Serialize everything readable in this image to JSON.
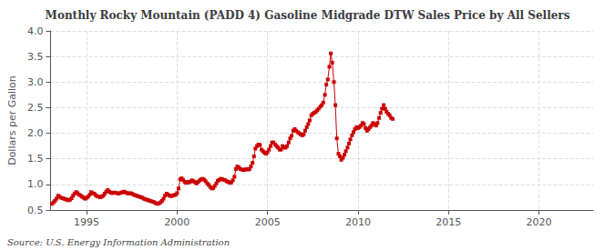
{
  "chart_data": {
    "type": "line",
    "title": "Monthly Rocky Mountain (PADD 4) Gasoline Midgrade DTW Sales Price by All Sellers",
    "ylabel": "Dollars per Gallon",
    "source": "Source: U.S. Energy Information Administration",
    "color": "#cc0000",
    "marker": "square",
    "line_style": "solid",
    "grid": true,
    "xlim": [
      1993.0,
      2023.0
    ],
    "ylim": [
      0.5,
      4.0
    ],
    "xticks": [
      1995,
      2000,
      2005,
      2010,
      2015,
      2020
    ],
    "yticks": [
      0.5,
      {
        "value": 1.0,
        "label": "1.0"
      },
      1.5,
      {
        "value": 2.0,
        "label": "2.0"
      },
      2.5,
      {
        "value": 3.0,
        "label": "3.0"
      },
      3.5,
      {
        "value": 4.0,
        "label": "4.0"
      }
    ],
    "x": [
      1993.08,
      1993.17,
      1993.25,
      1993.33,
      1993.42,
      1993.5,
      1993.58,
      1993.67,
      1993.75,
      1993.83,
      1993.92,
      1994.0,
      1994.08,
      1994.17,
      1994.25,
      1994.33,
      1994.42,
      1994.5,
      1994.58,
      1994.67,
      1994.75,
      1994.83,
      1994.92,
      1995.0,
      1995.08,
      1995.17,
      1995.25,
      1995.33,
      1995.42,
      1995.5,
      1995.58,
      1995.67,
      1995.75,
      1995.83,
      1995.92,
      1996.0,
      1996.08,
      1996.17,
      1996.25,
      1996.33,
      1996.42,
      1996.5,
      1996.58,
      1996.67,
      1996.75,
      1996.83,
      1996.92,
      1997.0,
      1997.08,
      1997.17,
      1997.25,
      1997.33,
      1997.42,
      1997.5,
      1997.58,
      1997.67,
      1997.75,
      1997.83,
      1997.92,
      1998.0,
      1998.08,
      1998.17,
      1998.25,
      1998.33,
      1998.42,
      1998.5,
      1998.58,
      1998.67,
      1998.75,
      1998.83,
      1998.92,
      1999.0,
      1999.08,
      1999.17,
      1999.25,
      1999.33,
      1999.42,
      1999.5,
      1999.58,
      1999.67,
      1999.75,
      1999.83,
      1999.92,
      2000.0,
      2000.08,
      2000.17,
      2000.25,
      2000.33,
      2000.42,
      2000.5,
      2000.58,
      2000.67,
      2000.75,
      2000.83,
      2000.92,
      2001.0,
      2001.08,
      2001.17,
      2001.25,
      2001.33,
      2001.42,
      2001.5,
      2001.58,
      2001.67,
      2001.75,
      2001.83,
      2001.92,
      2002.0,
      2002.08,
      2002.17,
      2002.25,
      2002.33,
      2002.42,
      2002.5,
      2002.58,
      2002.67,
      2002.75,
      2002.83,
      2002.92,
      2003.0,
      2003.08,
      2003.17,
      2003.25,
      2003.33,
      2003.42,
      2003.5,
      2003.58,
      2003.67,
      2003.75,
      2003.83,
      2003.92,
      2004.0,
      2004.08,
      2004.17,
      2004.25,
      2004.33,
      2004.42,
      2004.5,
      2004.58,
      2004.67,
      2004.75,
      2004.83,
      2004.92,
      2005.0,
      2005.08,
      2005.17,
      2005.25,
      2005.33,
      2005.42,
      2005.5,
      2005.58,
      2005.67,
      2005.75,
      2005.83,
      2005.92,
      2006.0,
      2006.08,
      2006.17,
      2006.25,
      2006.33,
      2006.42,
      2006.5,
      2006.58,
      2006.67,
      2006.75,
      2006.83,
      2006.92,
      2007.0,
      2007.08,
      2007.17,
      2007.25,
      2007.33,
      2007.42,
      2007.5,
      2007.58,
      2007.67,
      2007.75,
      2007.83,
      2007.92,
      2008.0,
      2008.08,
      2008.17,
      2008.25,
      2008.33,
      2008.42,
      2008.5,
      2008.58,
      2008.67,
      2008.75,
      2008.83,
      2008.92,
      2009.0,
      2009.08,
      2009.17,
      2009.25,
      2009.33,
      2009.42,
      2009.5,
      2009.58,
      2009.67,
      2009.75,
      2009.83,
      2009.92,
      2010.0,
      2010.08,
      2010.17,
      2010.25,
      2010.33,
      2010.42,
      2010.5,
      2010.58,
      2010.67,
      2010.75,
      2010.83,
      2010.92,
      2011.0,
      2011.08,
      2011.17,
      2011.25,
      2011.33,
      2011.42,
      2011.5,
      2011.58,
      2011.67,
      2011.75,
      2011.83,
      2011.92
    ],
    "values": [
      0.62,
      0.65,
      0.68,
      0.72,
      0.78,
      0.76,
      0.74,
      0.73,
      0.72,
      0.71,
      0.7,
      0.69,
      0.7,
      0.73,
      0.78,
      0.82,
      0.85,
      0.83,
      0.8,
      0.78,
      0.76,
      0.74,
      0.72,
      0.74,
      0.76,
      0.8,
      0.85,
      0.83,
      0.82,
      0.79,
      0.77,
      0.76,
      0.75,
      0.76,
      0.78,
      0.82,
      0.86,
      0.89,
      0.86,
      0.84,
      0.83,
      0.84,
      0.84,
      0.83,
      0.82,
      0.83,
      0.84,
      0.85,
      0.86,
      0.84,
      0.83,
      0.82,
      0.83,
      0.82,
      0.8,
      0.79,
      0.78,
      0.77,
      0.76,
      0.75,
      0.74,
      0.72,
      0.71,
      0.7,
      0.69,
      0.68,
      0.67,
      0.66,
      0.65,
      0.63,
      0.62,
      0.63,
      0.65,
      0.68,
      0.72,
      0.78,
      0.82,
      0.8,
      0.78,
      0.77,
      0.78,
      0.79,
      0.8,
      0.83,
      0.92,
      1.1,
      1.12,
      1.09,
      1.05,
      1.03,
      1.05,
      1.04,
      1.06,
      1.08,
      1.06,
      1.04,
      1.02,
      1.05,
      1.08,
      1.1,
      1.11,
      1.09,
      1.06,
      1.02,
      0.99,
      0.95,
      0.92,
      0.93,
      0.97,
      1.02,
      1.07,
      1.09,
      1.11,
      1.1,
      1.09,
      1.08,
      1.06,
      1.05,
      1.03,
      1.04,
      1.08,
      1.15,
      1.3,
      1.35,
      1.33,
      1.3,
      1.29,
      1.28,
      1.29,
      1.3,
      1.29,
      1.3,
      1.35,
      1.42,
      1.55,
      1.7,
      1.75,
      1.78,
      1.77,
      1.68,
      1.65,
      1.62,
      1.6,
      1.63,
      1.68,
      1.75,
      1.82,
      1.82,
      1.78,
      1.75,
      1.72,
      1.68,
      1.68,
      1.75,
      1.72,
      1.72,
      1.75,
      1.82,
      1.9,
      1.95,
      2.05,
      2.08,
      2.05,
      2.02,
      2.0,
      1.98,
      1.96,
      1.98,
      2.05,
      2.12,
      2.18,
      2.25,
      2.35,
      2.38,
      2.4,
      2.42,
      2.45,
      2.48,
      2.52,
      2.55,
      2.6,
      2.75,
      2.95,
      3.05,
      3.3,
      3.56,
      3.38,
      3.0,
      2.55,
      1.9,
      1.6,
      1.55,
      1.48,
      1.52,
      1.58,
      1.65,
      1.72,
      1.8,
      1.88,
      1.96,
      2.02,
      2.08,
      2.12,
      2.1,
      2.12,
      2.15,
      2.2,
      2.18,
      2.1,
      2.05,
      2.08,
      2.12,
      2.15,
      2.2,
      2.18,
      2.15,
      2.2,
      2.3,
      2.4,
      2.48,
      2.55,
      2.48,
      2.42,
      2.38,
      2.35,
      2.3,
      2.28
    ]
  }
}
